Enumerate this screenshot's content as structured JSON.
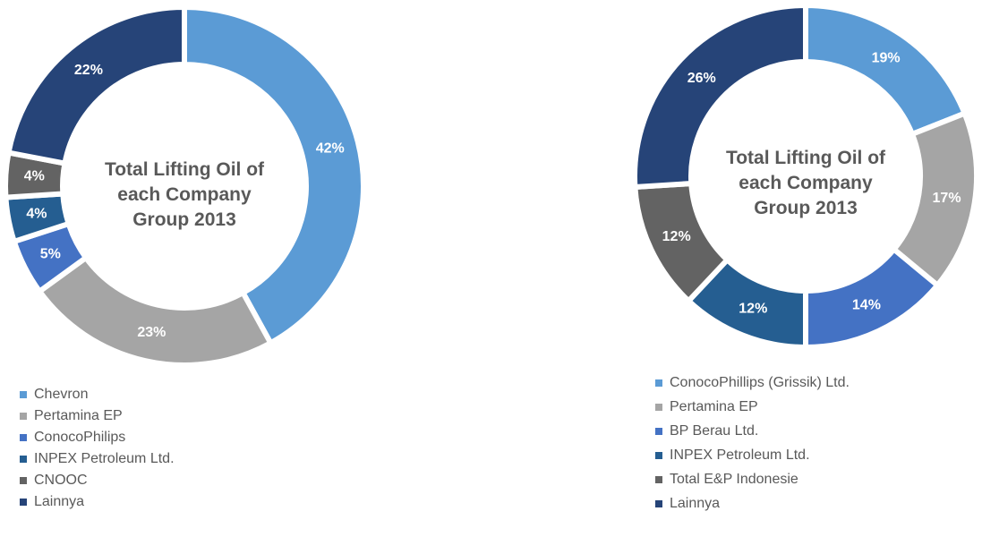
{
  "chart_data": [
    {
      "type": "donut",
      "title": "Total Lifting Oil of each Company Group 2013",
      "categories": [
        "Chevron",
        "Pertamina EP",
        "ConocoPhilips",
        "INPEX Petroleum Ltd.",
        "CNOOC",
        "Lainnya"
      ],
      "values": [
        42,
        23,
        5,
        4,
        4,
        22
      ],
      "value_labels": [
        "42%",
        "23%",
        "5%",
        "4%",
        "4%",
        "22%"
      ],
      "colors": [
        "#5b9bd5",
        "#a5a5a5",
        "#4472c4",
        "#255e91",
        "#636363",
        "#264478"
      ]
    },
    {
      "type": "donut",
      "title": "Total Lifting Oil of each Company Group 2013",
      "categories": [
        "ConocoPhillips (Grissik) Ltd.",
        "Pertamina EP",
        "BP Berau Ltd.",
        "INPEX Petroleum Ltd.",
        "Total E&P Indonesie",
        "Lainnya"
      ],
      "values": [
        19,
        17,
        14,
        12,
        12,
        26
      ],
      "value_labels": [
        "19%",
        "17%",
        "14%",
        "12%",
        "12%",
        "26%"
      ],
      "colors": [
        "#5b9bd5",
        "#a5a5a5",
        "#4472c4",
        "#255e91",
        "#636363",
        "#264478"
      ]
    }
  ]
}
